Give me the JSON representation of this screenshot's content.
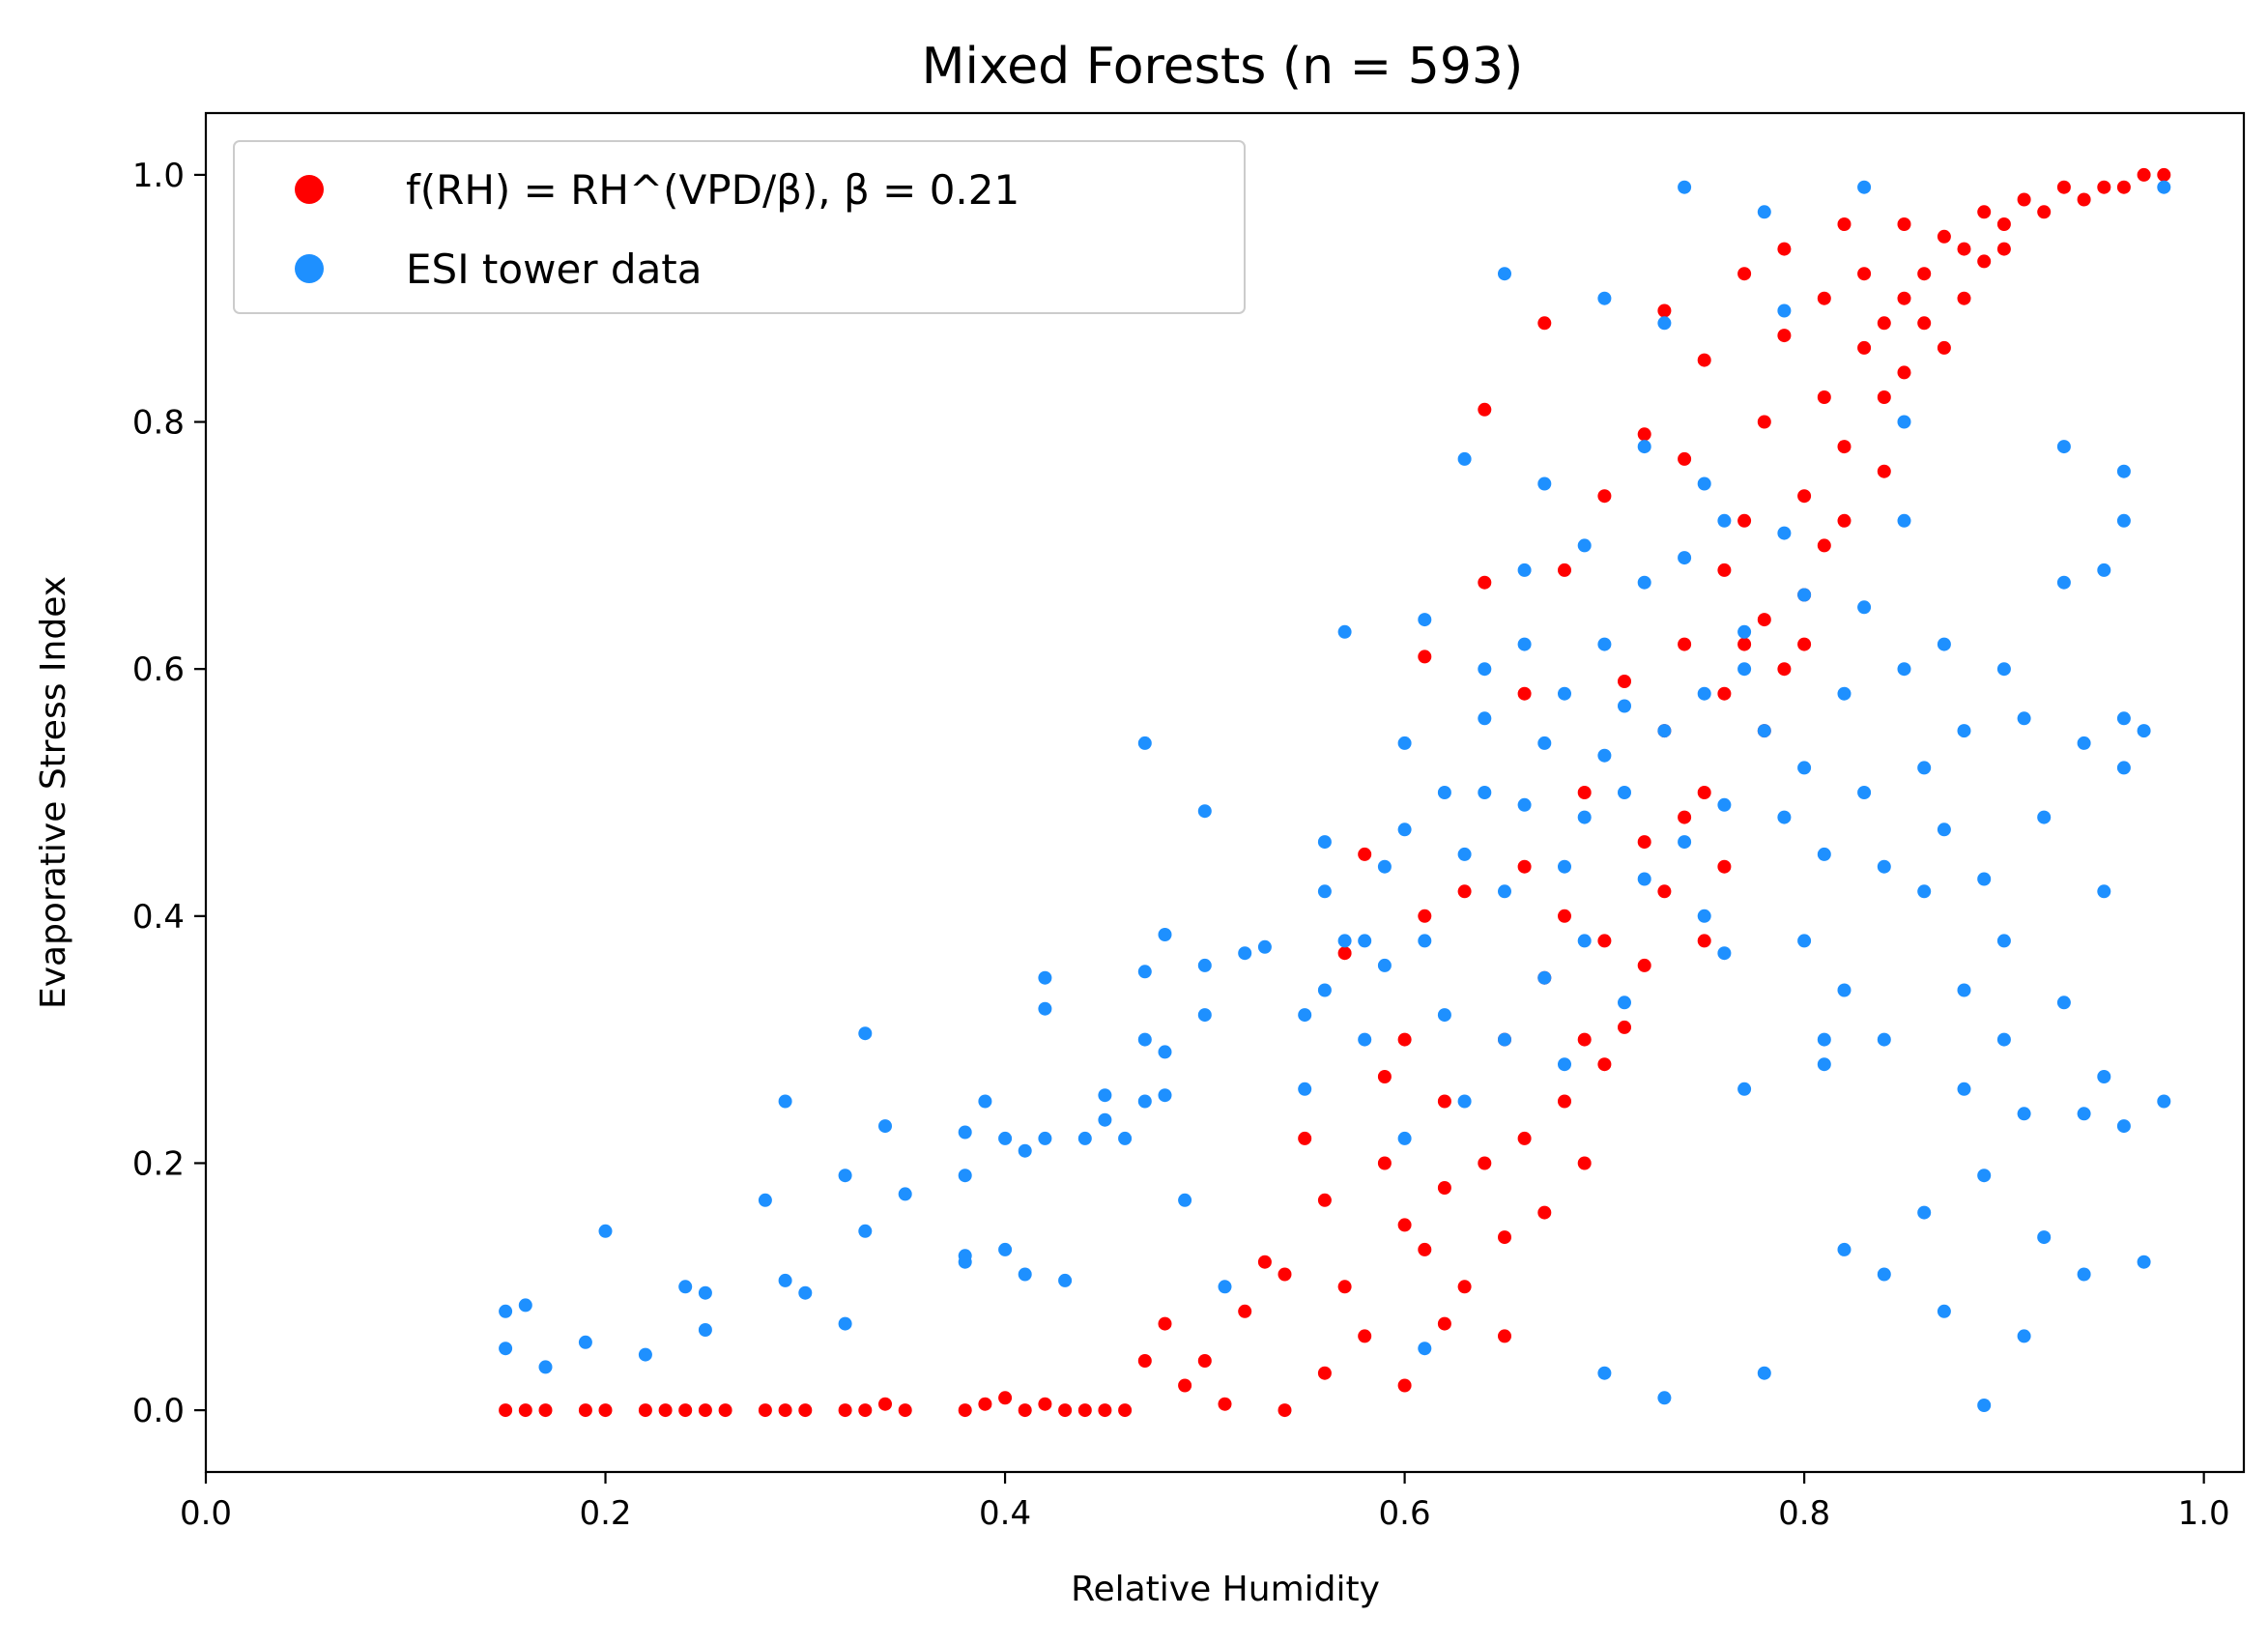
{
  "chart_data": {
    "type": "scatter",
    "title": "Mixed Forests (n = 593)",
    "xlabel": "Relative Humidity",
    "ylabel": "Evaporative Stress Index",
    "xlim": [
      0.0,
      1.02
    ],
    "ylim": [
      -0.05,
      1.05
    ],
    "xticks": [
      0.0,
      0.2,
      0.4,
      0.6,
      0.8,
      1.0
    ],
    "xtick_labels": [
      "0.0",
      "0.2",
      "0.4",
      "0.6",
      "0.8",
      "1.0"
    ],
    "yticks": [
      0.0,
      0.2,
      0.4,
      0.6,
      0.8,
      1.0
    ],
    "ytick_labels": [
      "0.0",
      "0.2",
      "0.4",
      "0.6",
      "0.8",
      "1.0"
    ],
    "grid": false,
    "legend_position": "top-left",
    "series": [
      {
        "name": "f(RH) = RH^(VPD/β), β = 0.21",
        "color": "#ff0000",
        "points": [
          [
            0.15,
            0.0
          ],
          [
            0.16,
            0.0
          ],
          [
            0.17,
            0.0
          ],
          [
            0.19,
            0.0
          ],
          [
            0.2,
            0.0
          ],
          [
            0.22,
            0.0
          ],
          [
            0.23,
            0.0
          ],
          [
            0.24,
            0.0
          ],
          [
            0.25,
            0.0
          ],
          [
            0.26,
            0.0
          ],
          [
            0.28,
            0.0
          ],
          [
            0.29,
            0.0
          ],
          [
            0.3,
            0.0
          ],
          [
            0.32,
            0.0
          ],
          [
            0.33,
            0.0
          ],
          [
            0.34,
            0.005
          ],
          [
            0.35,
            0.0
          ],
          [
            0.38,
            0.0
          ],
          [
            0.39,
            0.005
          ],
          [
            0.4,
            0.01
          ],
          [
            0.41,
            0.0
          ],
          [
            0.42,
            0.005
          ],
          [
            0.43,
            0.0
          ],
          [
            0.44,
            0.0
          ],
          [
            0.45,
            0.0
          ],
          [
            0.46,
            0.0
          ],
          [
            0.47,
            0.04
          ],
          [
            0.48,
            0.07
          ],
          [
            0.49,
            0.02
          ],
          [
            0.5,
            0.04
          ],
          [
            0.51,
            0.005
          ],
          [
            0.52,
            0.08
          ],
          [
            0.53,
            0.12
          ],
          [
            0.54,
            0.11
          ],
          [
            0.54,
            0.0
          ],
          [
            0.55,
            0.22
          ],
          [
            0.56,
            0.17
          ],
          [
            0.56,
            0.03
          ],
          [
            0.57,
            0.1
          ],
          [
            0.57,
            0.37
          ],
          [
            0.58,
            0.06
          ],
          [
            0.58,
            0.45
          ],
          [
            0.59,
            0.27
          ],
          [
            0.59,
            0.2
          ],
          [
            0.6,
            0.15
          ],
          [
            0.6,
            0.02
          ],
          [
            0.6,
            0.3
          ],
          [
            0.61,
            0.13
          ],
          [
            0.61,
            0.4
          ],
          [
            0.61,
            0.61
          ],
          [
            0.62,
            0.07
          ],
          [
            0.62,
            0.25
          ],
          [
            0.62,
            0.18
          ],
          [
            0.63,
            0.1
          ],
          [
            0.63,
            0.42
          ],
          [
            0.64,
            0.2
          ],
          [
            0.64,
            0.67
          ],
          [
            0.64,
            0.81
          ],
          [
            0.65,
            0.3
          ],
          [
            0.65,
            0.06
          ],
          [
            0.65,
            0.14
          ],
          [
            0.66,
            0.58
          ],
          [
            0.66,
            0.22
          ],
          [
            0.66,
            0.44
          ],
          [
            0.67,
            0.35
          ],
          [
            0.67,
            0.16
          ],
          [
            0.67,
            0.88
          ],
          [
            0.68,
            0.25
          ],
          [
            0.68,
            0.68
          ],
          [
            0.68,
            0.4
          ],
          [
            0.69,
            0.2
          ],
          [
            0.69,
            0.3
          ],
          [
            0.69,
            0.5
          ],
          [
            0.7,
            0.28
          ],
          [
            0.7,
            0.74
          ],
          [
            0.7,
            0.38
          ],
          [
            0.71,
            0.31
          ],
          [
            0.71,
            0.59
          ],
          [
            0.72,
            0.46
          ],
          [
            0.72,
            0.79
          ],
          [
            0.72,
            0.36
          ],
          [
            0.73,
            0.42
          ],
          [
            0.73,
            0.55
          ],
          [
            0.73,
            0.89
          ],
          [
            0.74,
            0.48
          ],
          [
            0.74,
            0.62
          ],
          [
            0.74,
            0.77
          ],
          [
            0.75,
            0.5
          ],
          [
            0.75,
            0.85
          ],
          [
            0.75,
            0.38
          ],
          [
            0.76,
            0.58
          ],
          [
            0.76,
            0.68
          ],
          [
            0.76,
            0.44
          ],
          [
            0.77,
            0.62
          ],
          [
            0.77,
            0.72
          ],
          [
            0.77,
            0.92
          ],
          [
            0.78,
            0.55
          ],
          [
            0.78,
            0.8
          ],
          [
            0.78,
            0.64
          ],
          [
            0.79,
            0.6
          ],
          [
            0.79,
            0.87
          ],
          [
            0.79,
            0.94
          ],
          [
            0.8,
            0.66
          ],
          [
            0.8,
            0.74
          ],
          [
            0.8,
            0.62
          ],
          [
            0.81,
            0.7
          ],
          [
            0.81,
            0.82
          ],
          [
            0.81,
            0.9
          ],
          [
            0.82,
            0.78
          ],
          [
            0.82,
            0.96
          ],
          [
            0.82,
            0.72
          ],
          [
            0.83,
            0.86
          ],
          [
            0.83,
            0.92
          ],
          [
            0.84,
            0.76
          ],
          [
            0.84,
            0.88
          ],
          [
            0.84,
            0.82
          ],
          [
            0.85,
            0.9
          ],
          [
            0.85,
            0.96
          ],
          [
            0.85,
            0.84
          ],
          [
            0.86,
            0.92
          ],
          [
            0.86,
            0.88
          ],
          [
            0.87,
            0.95
          ],
          [
            0.87,
            0.86
          ],
          [
            0.88,
            0.94
          ],
          [
            0.88,
            0.9
          ],
          [
            0.89,
            0.97
          ],
          [
            0.89,
            0.93
          ],
          [
            0.9,
            0.96
          ],
          [
            0.9,
            0.94
          ],
          [
            0.91,
            0.98
          ],
          [
            0.92,
            0.97
          ],
          [
            0.93,
            0.99
          ],
          [
            0.94,
            0.98
          ],
          [
            0.95,
            0.99
          ],
          [
            0.96,
            0.99
          ],
          [
            0.97,
            1.0
          ],
          [
            0.98,
            1.0
          ]
        ]
      },
      {
        "name": "ESI tower data",
        "color": "#1e90ff",
        "points": [
          [
            0.15,
            0.08
          ],
          [
            0.15,
            0.05
          ],
          [
            0.16,
            0.085
          ],
          [
            0.17,
            0.035
          ],
          [
            0.19,
            0.055
          ],
          [
            0.2,
            0.145
          ],
          [
            0.22,
            0.045
          ],
          [
            0.24,
            0.1
          ],
          [
            0.25,
            0.065
          ],
          [
            0.25,
            0.095
          ],
          [
            0.28,
            0.17
          ],
          [
            0.29,
            0.105
          ],
          [
            0.29,
            0.25
          ],
          [
            0.3,
            0.095
          ],
          [
            0.32,
            0.19
          ],
          [
            0.32,
            0.07
          ],
          [
            0.33,
            0.305
          ],
          [
            0.33,
            0.145
          ],
          [
            0.34,
            0.23
          ],
          [
            0.35,
            0.175
          ],
          [
            0.38,
            0.19
          ],
          [
            0.38,
            0.225
          ],
          [
            0.38,
            0.125
          ],
          [
            0.38,
            0.12
          ],
          [
            0.39,
            0.25
          ],
          [
            0.4,
            0.13
          ],
          [
            0.4,
            0.22
          ],
          [
            0.41,
            0.21
          ],
          [
            0.41,
            0.11
          ],
          [
            0.42,
            0.22
          ],
          [
            0.42,
            0.35
          ],
          [
            0.42,
            0.325
          ],
          [
            0.43,
            0.105
          ],
          [
            0.44,
            0.22
          ],
          [
            0.45,
            0.255
          ],
          [
            0.45,
            0.235
          ],
          [
            0.46,
            0.22
          ],
          [
            0.47,
            0.3
          ],
          [
            0.47,
            0.25
          ],
          [
            0.47,
            0.54
          ],
          [
            0.47,
            0.355
          ],
          [
            0.48,
            0.385
          ],
          [
            0.48,
            0.29
          ],
          [
            0.48,
            0.255
          ],
          [
            0.49,
            0.17
          ],
          [
            0.5,
            0.32
          ],
          [
            0.5,
            0.36
          ],
          [
            0.5,
            0.485
          ],
          [
            0.51,
            0.1
          ],
          [
            0.52,
            0.37
          ],
          [
            0.53,
            0.375
          ],
          [
            0.55,
            0.32
          ],
          [
            0.55,
            0.26
          ],
          [
            0.56,
            0.34
          ],
          [
            0.56,
            0.42
          ],
          [
            0.56,
            0.46
          ],
          [
            0.57,
            0.38
          ],
          [
            0.57,
            0.63
          ],
          [
            0.58,
            0.3
          ],
          [
            0.58,
            0.38
          ],
          [
            0.59,
            0.44
          ],
          [
            0.59,
            0.36
          ],
          [
            0.6,
            0.54
          ],
          [
            0.6,
            0.47
          ],
          [
            0.6,
            0.22
          ],
          [
            0.61,
            0.64
          ],
          [
            0.61,
            0.38
          ],
          [
            0.61,
            0.05
          ],
          [
            0.62,
            0.5
          ],
          [
            0.62,
            0.32
          ],
          [
            0.63,
            0.45
          ],
          [
            0.63,
            0.77
          ],
          [
            0.63,
            0.25
          ],
          [
            0.64,
            0.6
          ],
          [
            0.64,
            0.5
          ],
          [
            0.64,
            0.56
          ],
          [
            0.65,
            0.3
          ],
          [
            0.65,
            0.42
          ],
          [
            0.65,
            0.92
          ],
          [
            0.66,
            0.68
          ],
          [
            0.66,
            0.62
          ],
          [
            0.66,
            0.49
          ],
          [
            0.67,
            0.54
          ],
          [
            0.67,
            0.35
          ],
          [
            0.67,
            0.75
          ],
          [
            0.68,
            0.44
          ],
          [
            0.68,
            0.58
          ],
          [
            0.68,
            0.28
          ],
          [
            0.69,
            0.7
          ],
          [
            0.69,
            0.48
          ],
          [
            0.69,
            0.38
          ],
          [
            0.7,
            0.62
          ],
          [
            0.7,
            0.53
          ],
          [
            0.7,
            0.9
          ],
          [
            0.7,
            0.03
          ],
          [
            0.71,
            0.5
          ],
          [
            0.71,
            0.57
          ],
          [
            0.71,
            0.33
          ],
          [
            0.72,
            0.78
          ],
          [
            0.72,
            0.67
          ],
          [
            0.72,
            0.43
          ],
          [
            0.73,
            0.88
          ],
          [
            0.73,
            0.55
          ],
          [
            0.73,
            0.01
          ],
          [
            0.74,
            0.69
          ],
          [
            0.74,
            0.46
          ],
          [
            0.74,
            0.99
          ],
          [
            0.75,
            0.75
          ],
          [
            0.75,
            0.58
          ],
          [
            0.75,
            0.4
          ],
          [
            0.76,
            0.72
          ],
          [
            0.76,
            0.49
          ],
          [
            0.76,
            0.37
          ],
          [
            0.77,
            0.26
          ],
          [
            0.77,
            0.63
          ],
          [
            0.77,
            0.6
          ],
          [
            0.78,
            0.55
          ],
          [
            0.78,
            0.97
          ],
          [
            0.78,
            0.03
          ],
          [
            0.79,
            0.71
          ],
          [
            0.79,
            0.48
          ],
          [
            0.79,
            0.89
          ],
          [
            0.8,
            0.52
          ],
          [
            0.8,
            0.38
          ],
          [
            0.8,
            0.66
          ],
          [
            0.81,
            0.45
          ],
          [
            0.81,
            0.28
          ],
          [
            0.81,
            0.3
          ],
          [
            0.82,
            0.34
          ],
          [
            0.82,
            0.58
          ],
          [
            0.82,
            0.13
          ],
          [
            0.83,
            0.65
          ],
          [
            0.83,
            0.5
          ],
          [
            0.83,
            0.99
          ],
          [
            0.84,
            0.44
          ],
          [
            0.84,
            0.3
          ],
          [
            0.84,
            0.11
          ],
          [
            0.85,
            0.72
          ],
          [
            0.85,
            0.6
          ],
          [
            0.85,
            0.8
          ],
          [
            0.86,
            0.52
          ],
          [
            0.86,
            0.42
          ],
          [
            0.86,
            0.16
          ],
          [
            0.87,
            0.62
          ],
          [
            0.87,
            0.47
          ],
          [
            0.87,
            0.08
          ],
          [
            0.88,
            0.55
          ],
          [
            0.88,
            0.34
          ],
          [
            0.88,
            0.26
          ],
          [
            0.89,
            0.43
          ],
          [
            0.89,
            0.19
          ],
          [
            0.89,
            0.004
          ],
          [
            0.9,
            0.6
          ],
          [
            0.9,
            0.3
          ],
          [
            0.9,
            0.38
          ],
          [
            0.91,
            0.56
          ],
          [
            0.91,
            0.06
          ],
          [
            0.91,
            0.24
          ],
          [
            0.92,
            0.48
          ],
          [
            0.92,
            0.14
          ],
          [
            0.93,
            0.78
          ],
          [
            0.93,
            0.67
          ],
          [
            0.93,
            0.33
          ],
          [
            0.94,
            0.54
          ],
          [
            0.94,
            0.24
          ],
          [
            0.94,
            0.11
          ],
          [
            0.95,
            0.42
          ],
          [
            0.95,
            0.68
          ],
          [
            0.95,
            0.27
          ],
          [
            0.96,
            0.76
          ],
          [
            0.96,
            0.52
          ],
          [
            0.96,
            0.23
          ],
          [
            0.97,
            0.55
          ],
          [
            0.97,
            0.12
          ],
          [
            0.98,
            0.25
          ],
          [
            0.98,
            0.99
          ],
          [
            0.96,
            0.56
          ],
          [
            0.96,
            0.72
          ]
        ]
      }
    ]
  }
}
